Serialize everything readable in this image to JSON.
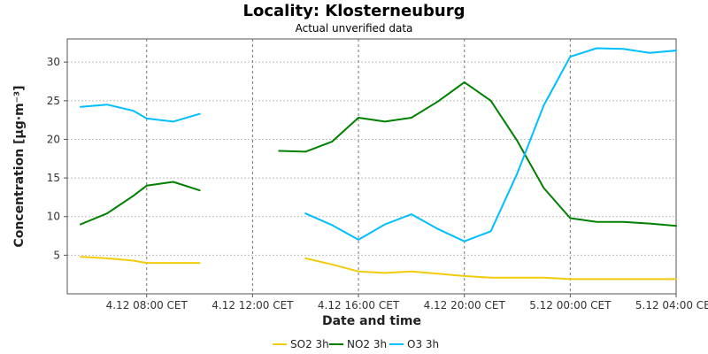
{
  "chart_data": {
    "type": "line",
    "title": "Locality: Klosterneuburg",
    "subtitle": "Actual unverified data",
    "xlabel": "Date and time",
    "ylabel": "Concentration [µg·m⁻³]",
    "ylim": [
      0,
      33
    ],
    "yticks": [
      5,
      10,
      15,
      20,
      25,
      30
    ],
    "xlim": [
      "2024-12-04T05:00",
      "2024-12-05T04:00"
    ],
    "xticks": [
      {
        "t": "2024-12-04T08:00",
        "label": "4.12 08:00 CET"
      },
      {
        "t": "2024-12-04T12:00",
        "label": "4.12 12:00 CET"
      },
      {
        "t": "2024-12-04T16:00",
        "label": "4.12 16:00 CET"
      },
      {
        "t": "2024-12-04T20:00",
        "label": "4.12 20:00 CET"
      },
      {
        "t": "2024-12-05T00:00",
        "label": "5.12 00:00 CET"
      },
      {
        "t": "2024-12-05T04:00",
        "label": "5.12 04:00 CET"
      }
    ],
    "grid": true,
    "legend_position": "bottom",
    "series": [
      {
        "name": "SO2 3h",
        "color": "#f2cc0c",
        "points": [
          [
            "2024-12-04T05:30",
            4.8
          ],
          [
            "2024-12-04T06:30",
            4.6
          ],
          [
            "2024-12-04T07:30",
            4.3
          ],
          [
            "2024-12-04T08:00",
            4.0
          ],
          [
            "2024-12-04T09:00",
            4.0
          ],
          [
            "2024-12-04T10:00",
            4.0
          ],
          null,
          [
            "2024-12-04T14:00",
            4.6
          ],
          [
            "2024-12-04T15:00",
            3.8
          ],
          [
            "2024-12-04T16:00",
            2.9
          ],
          [
            "2024-12-04T17:00",
            2.7
          ],
          [
            "2024-12-04T18:00",
            2.9
          ],
          [
            "2024-12-04T19:00",
            2.6
          ],
          [
            "2024-12-04T20:00",
            2.3
          ],
          [
            "2024-12-04T21:00",
            2.1
          ],
          [
            "2024-12-04T22:00",
            2.1
          ],
          [
            "2024-12-04T23:00",
            2.1
          ],
          [
            "2024-12-05T00:00",
            1.9
          ],
          [
            "2024-12-05T01:00",
            1.9
          ],
          [
            "2024-12-05T02:00",
            1.9
          ],
          [
            "2024-12-05T03:00",
            1.9
          ],
          [
            "2024-12-05T04:00",
            1.9
          ]
        ]
      },
      {
        "name": "NO2 3h",
        "color": "#008000",
        "points": [
          [
            "2024-12-04T05:30",
            9.0
          ],
          [
            "2024-12-04T06:30",
            10.4
          ],
          [
            "2024-12-04T07:30",
            12.7
          ],
          [
            "2024-12-04T08:00",
            14.0
          ],
          [
            "2024-12-04T09:00",
            14.5
          ],
          [
            "2024-12-04T10:00",
            13.4
          ],
          null,
          [
            "2024-12-04T13:00",
            18.5
          ],
          [
            "2024-12-04T14:00",
            18.4
          ],
          [
            "2024-12-04T15:00",
            19.7
          ],
          [
            "2024-12-04T16:00",
            22.8
          ],
          [
            "2024-12-04T17:00",
            22.3
          ],
          [
            "2024-12-04T18:00",
            22.8
          ],
          [
            "2024-12-04T19:00",
            24.9
          ],
          [
            "2024-12-04T20:00",
            27.4
          ],
          [
            "2024-12-04T21:00",
            25.0
          ],
          [
            "2024-12-04T22:00",
            19.8
          ],
          [
            "2024-12-04T23:00",
            13.7
          ],
          [
            "2024-12-05T00:00",
            9.8
          ],
          [
            "2024-12-05T01:00",
            9.3
          ],
          [
            "2024-12-05T02:00",
            9.3
          ],
          [
            "2024-12-05T03:00",
            9.1
          ],
          [
            "2024-12-05T04:00",
            8.8
          ]
        ]
      },
      {
        "name": "O3 3h",
        "color": "#00bfff",
        "points": [
          [
            "2024-12-04T05:30",
            24.2
          ],
          [
            "2024-12-04T06:30",
            24.5
          ],
          [
            "2024-12-04T07:30",
            23.7
          ],
          [
            "2024-12-04T08:00",
            22.7
          ],
          [
            "2024-12-04T09:00",
            22.3
          ],
          [
            "2024-12-04T10:00",
            23.3
          ],
          null,
          [
            "2024-12-04T14:00",
            10.4
          ],
          [
            "2024-12-04T15:00",
            8.9
          ],
          [
            "2024-12-04T16:00",
            7.0
          ],
          [
            "2024-12-04T17:00",
            9.0
          ],
          [
            "2024-12-04T18:00",
            10.3
          ],
          [
            "2024-12-04T19:00",
            8.4
          ],
          [
            "2024-12-04T20:00",
            6.8
          ],
          [
            "2024-12-04T21:00",
            8.1
          ],
          [
            "2024-12-04T22:00",
            15.6
          ],
          [
            "2024-12-04T23:00",
            24.4
          ],
          [
            "2024-12-05T00:00",
            30.7
          ],
          [
            "2024-12-05T01:00",
            31.8
          ],
          [
            "2024-12-05T02:00",
            31.7
          ],
          [
            "2024-12-05T03:00",
            31.2
          ],
          [
            "2024-12-05T04:00",
            31.5
          ]
        ]
      }
    ]
  }
}
